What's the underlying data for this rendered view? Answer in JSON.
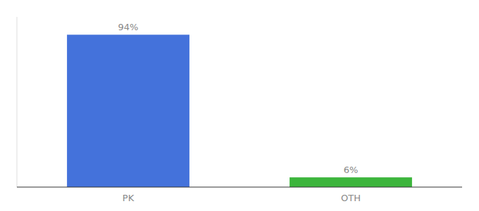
{
  "chart_data": {
    "type": "bar",
    "categories": [
      "PK",
      "OTH"
    ],
    "values": [
      94,
      6
    ],
    "value_labels": [
      "94%",
      "6%"
    ],
    "colors": [
      "#4472db",
      "#3cb53c"
    ],
    "ylim": [
      0,
      105
    ],
    "data_labels": true,
    "tick_labels": "x"
  }
}
